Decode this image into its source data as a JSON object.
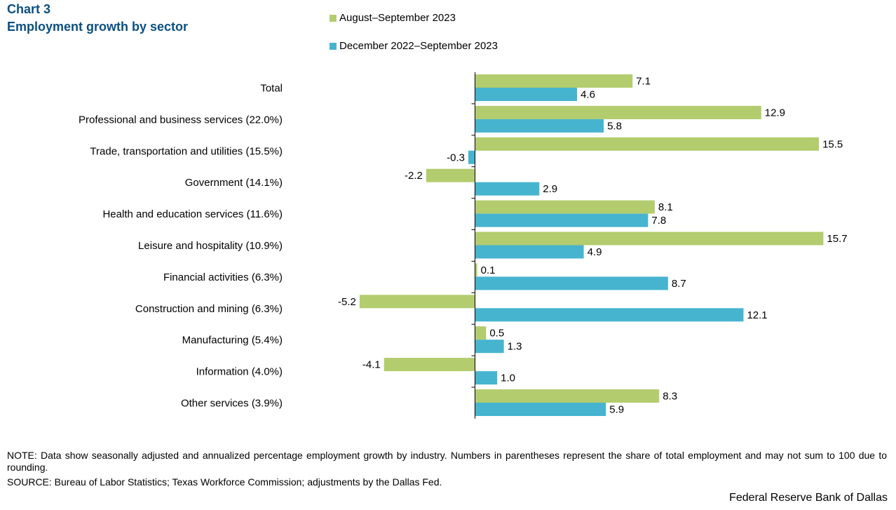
{
  "header": {
    "chart_number": "Chart 3",
    "title": "Employment  growth by sector"
  },
  "colors": {
    "title": "#0a4f82",
    "series1": "#b3cc6e",
    "series2": "#46b4cf",
    "axis": "#000000"
  },
  "chart_data": {
    "type": "bar",
    "orientation": "horizontal",
    "title": "Employment growth by sector",
    "categories": [
      "Total",
      "Professional and business services (22.0%)",
      "Trade, transportation and utilities (15.5%)",
      "Government (14.1%)",
      "Health and education services (11.6%)",
      "Leisure and hospitality  (10.9%)",
      "Financial activities (6.3%)",
      "Construction and mining (6.3%)",
      "Manufacturing (5.4%)",
      "Information (4.0%)",
      "Other services (3.9%)"
    ],
    "series": [
      {
        "name": "August–September  2023",
        "values": [
          7.1,
          12.9,
          15.5,
          -2.2,
          8.1,
          15.7,
          0.1,
          -5.2,
          0.5,
          -4.1,
          8.3
        ],
        "labels": [
          "7.1",
          "12.9",
          "15.5",
          "-2.2",
          "8.1",
          "15.7",
          "0.1",
          "-5.2",
          "0.5",
          "-4.1",
          "8.3"
        ]
      },
      {
        "name": "December  2022–September  2023",
        "values": [
          4.6,
          5.8,
          -0.3,
          2.9,
          7.8,
          4.9,
          8.7,
          12.1,
          1.3,
          1.0,
          5.9
        ],
        "labels": [
          "4.6",
          "5.8",
          "-0.3",
          "2.9",
          "7.8",
          "4.9",
          "8.7",
          "12.1",
          "1.3",
          "1.0",
          "5.9"
        ]
      }
    ],
    "xlim": [
      -5.5,
      16.5
    ],
    "legend": "top"
  },
  "footer": {
    "note": "NOTE: Data show seasonally adjusted and annualized percentage employment growth by industry. Numbers in parentheses represent the share of total employment and may not sum to 100 due to rounding.",
    "source": "SOURCE: Bureau of Labor Statistics; Texas Workforce Commission; adjustments by the Dallas Fed.",
    "credit": "Federal Reserve Bank of Dallas"
  }
}
